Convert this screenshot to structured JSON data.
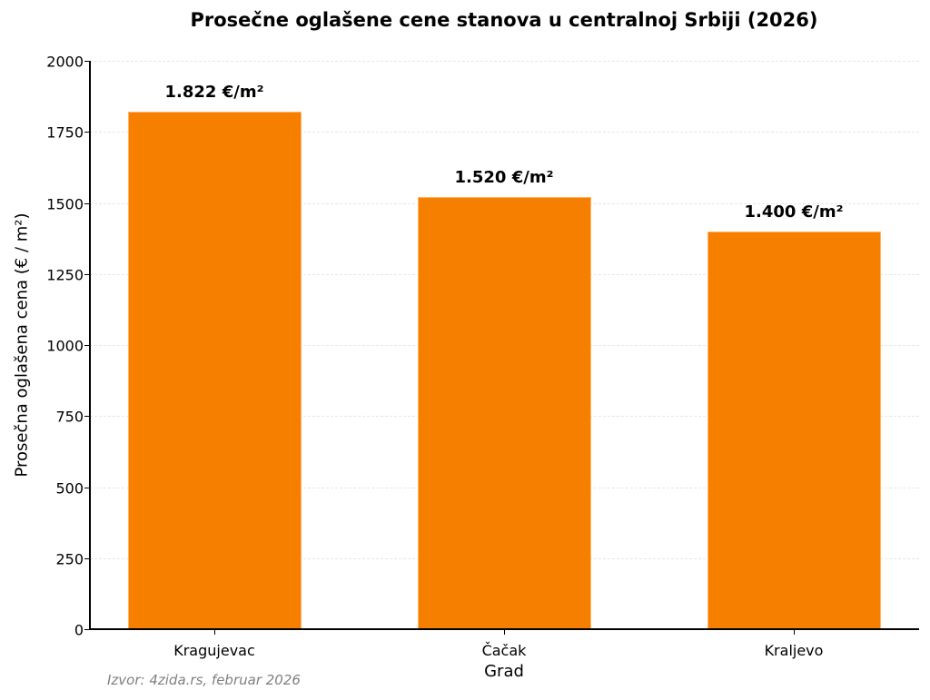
{
  "chart_data": {
    "type": "bar",
    "title": "Prosečne oglašene cene stanova u centralnoj Srbiji (2026)",
    "xlabel": "Grad",
    "ylabel": "Prosečna oglašena cena (€ / m²)",
    "categories": [
      "Kragujevac",
      "Čačak",
      "Kraljevo"
    ],
    "values": [
      1822,
      1520,
      1400
    ],
    "value_labels": [
      "1.822 €/m²",
      "1.520 €/m²",
      "1.400 €/m²"
    ],
    "ylim": [
      0,
      2000
    ],
    "yticks": [
      0,
      250,
      500,
      750,
      1000,
      1250,
      1500,
      1750,
      2000
    ],
    "grid": "y dashed",
    "bar_color": "#f77f00",
    "legend": null,
    "annotation": "Izvor: 4zida.rs, februar 2026"
  }
}
